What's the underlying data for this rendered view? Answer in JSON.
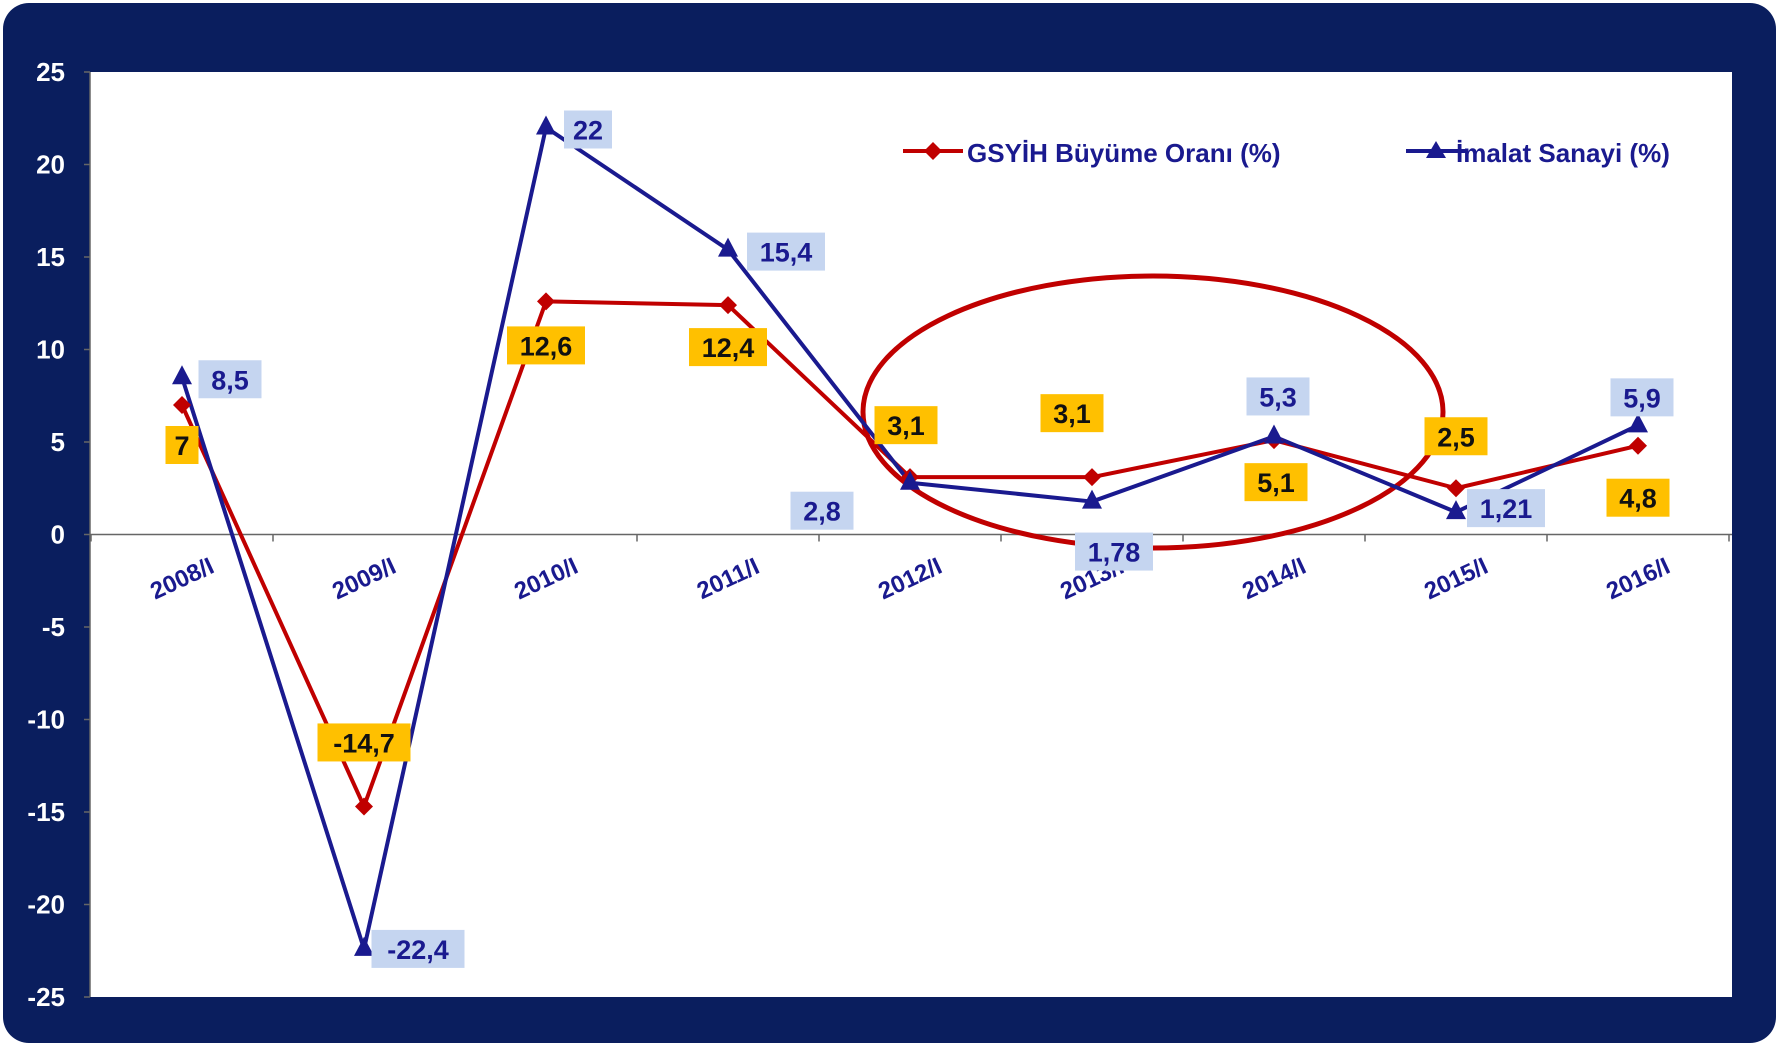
{
  "chart_data": {
    "type": "line",
    "categories": [
      "2008/I",
      "2009/I",
      "2010/I",
      "2011/I",
      "2012/I",
      "2013/I",
      "2014/I",
      "2015/I",
      "2016/I"
    ],
    "series": [
      {
        "name": "GSYİH Büyüme Oranı (%)",
        "values": [
          7,
          -14.7,
          12.6,
          12.4,
          3.1,
          3.1,
          5.1,
          2.5,
          4.8
        ],
        "labels": [
          "7",
          "-14,7",
          "12,6",
          "12,4",
          "3,1",
          "3,1",
          "5,1",
          "2,5",
          "4,8"
        ],
        "color": "#c00000",
        "label_bg": "#ffc000",
        "marker": "diamond"
      },
      {
        "name": "İmalat Sanayi (%)",
        "values": [
          8.5,
          -22.4,
          22,
          15.4,
          2.8,
          1.78,
          5.3,
          1.21,
          5.9
        ],
        "labels": [
          "8,5",
          "-22,4",
          "22",
          "15,4",
          "2,8",
          "1,78",
          "5,3",
          "1,21",
          "5,9"
        ],
        "color": "#1a1a8f",
        "label_bg": "#c5d5f0",
        "marker": "triangle"
      }
    ],
    "ylim": [
      -25,
      25
    ],
    "yticks": [
      "25",
      "20",
      "15",
      "10",
      "5",
      "0",
      "-5",
      "-10",
      "-15",
      "-20",
      "-25"
    ],
    "ytick_values": [
      25,
      20,
      15,
      10,
      5,
      0,
      -5,
      -10,
      -15,
      -20,
      -25
    ],
    "grid": false,
    "legend": "top-right",
    "highlight": "ellipse around 2012/I–2016/I",
    "colors": {
      "frame": "#0a1e5e",
      "plot_bg": "#ffffff",
      "axis_text": "#1a1a8f",
      "highlight": "#c00000"
    }
  }
}
